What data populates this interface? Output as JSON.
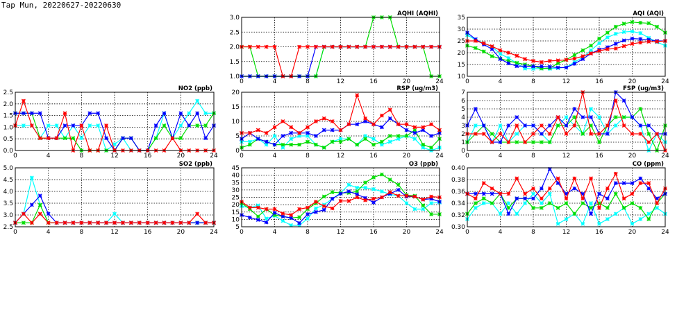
{
  "title": "Tap Mun, 20220627-20220630",
  "series_colors": {
    "red": "#ff0000",
    "green": "#00dd00",
    "blue": "#0000ff",
    "cyan": "#00ffff"
  },
  "chart_data": [
    {
      "id": "aqhi",
      "type": "line",
      "title": "AQHI (AQHI)",
      "xlim": [
        0,
        24
      ],
      "xticks": [
        0,
        4,
        8,
        12,
        16,
        20,
        24
      ],
      "ylim": [
        1,
        3
      ],
      "yticks": [
        "1.0",
        "1.5",
        "2.0",
        "2.5",
        "3.0"
      ],
      "grid": true,
      "series": [
        {
          "name": "cyan",
          "values": [
            1,
            1,
            1,
            1,
            1,
            1,
            1,
            1,
            1,
            1,
            2,
            2,
            2,
            2,
            2,
            2,
            2,
            2,
            2,
            2,
            2,
            2,
            2,
            2,
            2
          ]
        },
        {
          "name": "green",
          "values": [
            2,
            2,
            1,
            1,
            1,
            1,
            1,
            1,
            1,
            1,
            2,
            2,
            2,
            2,
            2,
            2,
            3,
            3,
            3,
            2,
            2,
            2,
            2,
            1,
            1
          ]
        },
        {
          "name": "blue",
          "values": [
            1,
            1,
            1,
            1,
            1,
            1,
            1,
            1,
            1,
            2,
            2,
            2,
            2,
            2,
            2,
            2,
            2,
            2,
            2,
            2,
            2,
            2,
            2,
            2,
            2
          ]
        },
        {
          "name": "red",
          "values": [
            2,
            2,
            2,
            2,
            2,
            1,
            1,
            2,
            2,
            2,
            2,
            2,
            2,
            2,
            2,
            2,
            2,
            2,
            2,
            2,
            2,
            2,
            2,
            2,
            2
          ]
        }
      ]
    },
    {
      "id": "aqi",
      "type": "line",
      "title": "AQI (AQI)",
      "xlim": [
        0,
        24
      ],
      "xticks": [
        0,
        4,
        8,
        12,
        16,
        20,
        24
      ],
      "ylim": [
        10,
        35
      ],
      "yticks": [
        "10",
        "15",
        "20",
        "25",
        "30",
        "35"
      ],
      "grid": true,
      "series": [
        {
          "name": "cyan",
          "values": [
            27.5,
            25.5,
            24,
            22.5,
            19.5,
            17.7,
            15.5,
            13.3,
            13.2,
            13.3,
            13.2,
            13.5,
            13.8,
            16,
            18,
            21,
            24,
            26.5,
            28,
            28.8,
            29,
            28.3,
            26.3,
            24.5,
            23
          ]
        },
        {
          "name": "green",
          "values": [
            23,
            22,
            20.5,
            18.5,
            17.5,
            16.5,
            15.7,
            15,
            14.3,
            13.3,
            13.5,
            15.5,
            17,
            19,
            21,
            23,
            26,
            28.5,
            31,
            32.3,
            33,
            32.7,
            32.5,
            31,
            28.5
          ]
        },
        {
          "name": "blue",
          "values": [
            28.5,
            25.7,
            23.5,
            21.5,
            17.3,
            15.5,
            14.3,
            14.3,
            14.2,
            14.2,
            14,
            13.7,
            13.7,
            15.3,
            17.3,
            19.7,
            21.3,
            22.3,
            23.8,
            25.2,
            26,
            25.8,
            25.5,
            25,
            25
          ]
        },
        {
          "name": "red",
          "values": [
            25,
            25,
            24,
            22.7,
            21,
            20,
            18.7,
            17.3,
            16.5,
            16,
            16.5,
            16.7,
            17,
            17.5,
            18.5,
            19.7,
            20.8,
            21.5,
            21.8,
            22.8,
            23.8,
            24.3,
            24.7,
            24.7,
            25
          ]
        }
      ]
    },
    {
      "id": "no2",
      "type": "line",
      "title": "NO2 (ppb)",
      "xlim": [
        0,
        24
      ],
      "xticks": [
        0,
        4,
        8,
        12,
        16,
        20,
        24
      ],
      "ylim": [
        0,
        2.5
      ],
      "yticks": [
        "0.0",
        "0.5",
        "1.0",
        "1.5",
        "2.0",
        "2.5"
      ],
      "grid": true,
      "series": [
        {
          "name": "cyan",
          "values": [
            1.07,
            1.07,
            1.07,
            0.53,
            1.07,
            1.07,
            0.53,
            1.07,
            0.53,
            1.07,
            1.07,
            0,
            0.27,
            0.53,
            0,
            0,
            0,
            0.53,
            1.6,
            0.53,
            1.07,
            1.6,
            2.13,
            1.6,
            1.6
          ]
        },
        {
          "name": "green",
          "values": [
            1.6,
            1.6,
            1.6,
            0.53,
            0.53,
            0.53,
            0.53,
            0.53,
            0,
            0,
            0,
            0,
            0,
            0.53,
            0.53,
            0,
            0,
            0.53,
            1.07,
            0.53,
            0.53,
            1.07,
            1.07,
            1.07,
            1.6
          ]
        },
        {
          "name": "blue",
          "values": [
            1.6,
            1.6,
            1.6,
            1.6,
            0.53,
            0.53,
            1.07,
            1.07,
            1.07,
            1.6,
            1.6,
            0.53,
            0,
            0.53,
            0.53,
            0,
            0,
            1.07,
            1.6,
            0.53,
            1.6,
            1.07,
            1.6,
            0.53,
            1.07
          ]
        },
        {
          "name": "red",
          "values": [
            1.07,
            2.13,
            1.07,
            0.53,
            0.53,
            0.53,
            1.6,
            0,
            1.07,
            0,
            0,
            1.07,
            0,
            0,
            0,
            0,
            0,
            0,
            0,
            0.53,
            0,
            0,
            0,
            0,
            0
          ]
        }
      ]
    },
    {
      "id": "rsp",
      "type": "line",
      "title": "RSP (ug/m3)",
      "xlim": [
        0,
        24
      ],
      "xticks": [
        0,
        4,
        8,
        12,
        16,
        20,
        24
      ],
      "ylim": [
        0,
        20
      ],
      "yticks": [
        "0",
        "5",
        "10",
        "15",
        "20"
      ],
      "grid": true,
      "series": [
        {
          "name": "cyan",
          "values": [
            3,
            3,
            4,
            2,
            5,
            1,
            4,
            5,
            5,
            2,
            1,
            3,
            4,
            4,
            2,
            5,
            4,
            2,
            3,
            4,
            5,
            4,
            1,
            0,
            1
          ]
        },
        {
          "name": "green",
          "values": [
            1,
            2,
            4,
            3,
            2,
            2,
            2,
            2,
            3,
            2,
            1,
            3,
            3,
            4,
            2,
            4,
            2,
            3,
            5,
            5,
            5,
            7,
            2,
            1,
            4
          ]
        },
        {
          "name": "blue",
          "values": [
            4,
            6,
            4,
            3,
            2,
            5,
            6,
            6,
            6,
            5,
            7,
            7,
            7,
            9,
            9,
            10,
            9,
            8,
            11,
            9,
            7,
            6,
            7,
            5,
            6
          ]
        },
        {
          "name": "red",
          "values": [
            6,
            6,
            7,
            6,
            8,
            10,
            8,
            6,
            8,
            10,
            11,
            10,
            7,
            9,
            19,
            11,
            9,
            12,
            14,
            9,
            9,
            8,
            8,
            9,
            7
          ]
        }
      ]
    },
    {
      "id": "fsp",
      "type": "line",
      "title": "FSP (ug/m3)",
      "xlim": [
        0,
        24
      ],
      "xticks": [
        0,
        4,
        8,
        12,
        16,
        20,
        24
      ],
      "ylim": [
        0,
        7
      ],
      "yticks": [
        "0",
        "1",
        "2",
        "3",
        "4",
        "5",
        "6",
        "7"
      ],
      "grid": true,
      "series": [
        {
          "name": "cyan",
          "values": [
            1,
            3,
            3,
            1,
            3,
            1,
            2,
            3,
            3,
            2,
            1,
            3,
            4,
            3,
            2,
            5,
            4,
            2,
            3,
            4,
            4,
            3,
            0,
            2,
            1
          ]
        },
        {
          "name": "green",
          "values": [
            1,
            2,
            3,
            2,
            1,
            1,
            1,
            1,
            1,
            1,
            1,
            3,
            3,
            4,
            2,
            3,
            1,
            3,
            4,
            4,
            4,
            5,
            2,
            0,
            3
          ]
        },
        {
          "name": "blue",
          "values": [
            3,
            5,
            3,
            1,
            1,
            3,
            4,
            3,
            3,
            2,
            3,
            4,
            3,
            5,
            4,
            4,
            2,
            2,
            7,
            6,
            4,
            3,
            3,
            2,
            2
          ]
        },
        {
          "name": "red",
          "values": [
            2,
            2,
            2,
            1,
            2,
            1,
            3,
            1,
            2,
            3,
            2,
            4,
            2,
            3,
            7,
            2,
            2,
            3,
            6,
            3,
            2,
            2,
            1,
            2,
            0
          ]
        }
      ]
    },
    {
      "id": "so2",
      "type": "line",
      "title": "SO2 (ppb)",
      "xlim": [
        0,
        24
      ],
      "xticks": [
        0,
        4,
        8,
        12,
        16,
        20,
        24
      ],
      "ylim": [
        2.5,
        5
      ],
      "yticks": [
        "2.5",
        "3.0",
        "3.5",
        "4.0",
        "4.5",
        "5.0"
      ],
      "grid": true,
      "series": [
        {
          "name": "cyan",
          "values": [
            2.67,
            3.05,
            4.58,
            3.43,
            2.67,
            2.67,
            2.67,
            2.67,
            2.67,
            2.67,
            2.67,
            2.67,
            3.05,
            2.67,
            2.67,
            2.67,
            2.67,
            2.67,
            2.67,
            2.67,
            2.67,
            2.67,
            2.67,
            2.67,
            2.67
          ]
        },
        {
          "name": "green",
          "values": [
            2.67,
            2.67,
            2.67,
            3.43,
            2.67,
            2.67,
            2.67,
            2.67,
            2.67,
            2.67,
            2.67,
            2.67,
            2.67,
            2.67,
            2.67,
            2.67,
            2.67,
            2.67,
            2.67,
            2.67,
            2.67,
            2.67,
            2.67,
            2.67,
            2.67
          ]
        },
        {
          "name": "blue",
          "values": [
            2.67,
            3.05,
            3.43,
            3.82,
            3.05,
            2.67,
            2.67,
            2.67,
            2.67,
            2.67,
            2.67,
            2.67,
            2.67,
            2.67,
            2.67,
            2.67,
            2.67,
            2.67,
            2.67,
            2.67,
            2.67,
            2.67,
            2.67,
            2.67,
            2.67
          ]
        },
        {
          "name": "red",
          "values": [
            2.67,
            3.05,
            2.67,
            3.05,
            2.67,
            2.67,
            2.67,
            2.67,
            2.67,
            2.67,
            2.67,
            2.67,
            2.67,
            2.67,
            2.67,
            2.67,
            2.67,
            2.67,
            2.67,
            2.67,
            2.67,
            2.67,
            3.05,
            2.67,
            2.67
          ]
        }
      ]
    },
    {
      "id": "o3",
      "type": "line",
      "title": "O3 (ppb)",
      "xlim": [
        0,
        24
      ],
      "xticks": [
        0,
        4,
        8,
        12,
        16,
        20,
        24
      ],
      "ylim": [
        5,
        45
      ],
      "yticks": [
        "5",
        "10",
        "15",
        "20",
        "25",
        "30",
        "35",
        "40",
        "45"
      ],
      "grid": true,
      "series": [
        {
          "name": "cyan",
          "values": [
            19,
            18,
            19.5,
            10.5,
            12.5,
            9,
            6,
            6,
            10.5,
            17.5,
            20,
            24,
            28,
            33.5,
            31.5,
            31.5,
            30.5,
            29,
            27,
            26,
            21,
            17,
            17,
            21,
            21.5
          ]
        },
        {
          "name": "green",
          "values": [
            21,
            17,
            12,
            17,
            13,
            12,
            11,
            11.5,
            17,
            21,
            25.5,
            28.5,
            28,
            28,
            29,
            35,
            38.5,
            40.5,
            37,
            33.5,
            26.5,
            26,
            19.5,
            13.5,
            13.5
          ]
        },
        {
          "name": "blue",
          "values": [
            13,
            11.3,
            9.7,
            8,
            14.5,
            12,
            11,
            7.5,
            13.5,
            15,
            16.5,
            24,
            27.5,
            29,
            27,
            24.5,
            21.5,
            25,
            27.5,
            30,
            25.5,
            25.5,
            23.5,
            24,
            22
          ]
        },
        {
          "name": "red",
          "values": [
            22,
            18,
            18,
            17,
            17,
            14,
            13,
            17,
            18,
            22,
            19,
            17.5,
            22.5,
            22.5,
            25,
            23,
            24,
            25,
            28.5,
            26,
            26,
            25.5,
            23.5,
            25.5,
            25
          ]
        }
      ]
    },
    {
      "id": "co",
      "type": "line",
      "title": "CO (ppm)",
      "xlim": [
        0,
        24
      ],
      "xticks": [
        0,
        4,
        8,
        12,
        16,
        20,
        24
      ],
      "ylim": [
        0.3,
        0.4
      ],
      "yticks": [
        "0.30",
        "0.32",
        "0.34",
        "0.36",
        "0.38",
        "0.40"
      ],
      "grid": true,
      "series": [
        {
          "name": "cyan",
          "values": [
            0.313,
            0.332,
            0.34,
            0.34,
            0.322,
            0.34,
            0.322,
            0.34,
            0.356,
            0.34,
            0.356,
            0.305,
            0.313,
            0.322,
            0.305,
            0.34,
            0.305,
            0.313,
            0.322,
            0.332,
            0.305,
            0.313,
            0.322,
            0.332,
            0.322
          ]
        },
        {
          "name": "green",
          "values": [
            0.322,
            0.34,
            0.348,
            0.34,
            0.356,
            0.332,
            0.348,
            0.348,
            0.332,
            0.332,
            0.34,
            0.332,
            0.34,
            0.322,
            0.34,
            0.332,
            0.34,
            0.332,
            0.356,
            0.332,
            0.34,
            0.332,
            0.313,
            0.34,
            0.356
          ]
        },
        {
          "name": "blue",
          "values": [
            0.356,
            0.356,
            0.356,
            0.356,
            0.356,
            0.322,
            0.348,
            0.348,
            0.348,
            0.365,
            0.398,
            0.374,
            0.356,
            0.365,
            0.356,
            0.322,
            0.356,
            0.348,
            0.374,
            0.374,
            0.374,
            0.382,
            0.365,
            0.348,
            0.356
          ]
        },
        {
          "name": "red",
          "values": [
            0.356,
            0.348,
            0.374,
            0.365,
            0.356,
            0.356,
            0.382,
            0.356,
            0.365,
            0.348,
            0.365,
            0.382,
            0.348,
            0.382,
            0.348,
            0.382,
            0.332,
            0.365,
            0.39,
            0.348,
            0.356,
            0.374,
            0.374,
            0.34,
            0.365
          ]
        }
      ]
    }
  ]
}
